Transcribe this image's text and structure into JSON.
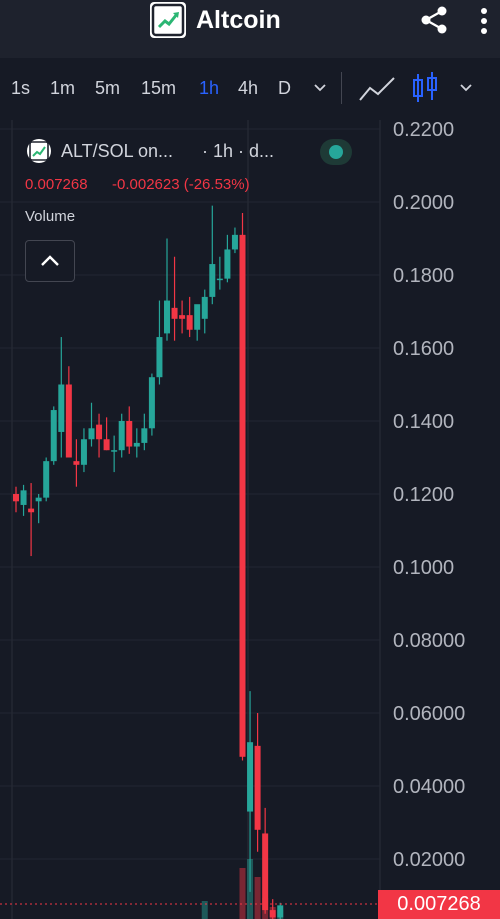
{
  "app": {
    "title": "Altcoin"
  },
  "icons": {
    "logo": "chart-up-logo-icon",
    "share": "share-icon",
    "more": "more-vertical-icon",
    "dropdown": "chevron-down-icon",
    "line_chart": "line-chart-icon",
    "candles": "candlestick-icon",
    "collapse": "chevron-up-icon"
  },
  "toolbar": {
    "timeframes": [
      "1s",
      "1m",
      "5m",
      "15m",
      "1h",
      "4h",
      "D"
    ],
    "active_timeframe": "1h"
  },
  "legend": {
    "symbol": "ALT/SOL on...",
    "interval": "· 1h · d...",
    "price": "0.007268",
    "change": "-0.002623 (-26.53%)",
    "volume_label": "Volume"
  },
  "current_price_badge": "0.007268",
  "colors": {
    "up": "#26a69a",
    "down": "#f23645",
    "accent": "#2962ff",
    "background": "#161a25"
  },
  "chart_data": {
    "type": "candlestick",
    "ylim": [
      0,
      0.22
    ],
    "ticks": [
      "0.2200",
      "0.2000",
      "0.1800",
      "0.1600",
      "0.1400",
      "0.1200",
      "0.1000",
      "0.08000",
      "0.06000",
      "0.04000",
      "0.02000"
    ],
    "tick_values": [
      0.22,
      0.2,
      0.18,
      0.16,
      0.14,
      0.12,
      0.1,
      0.08,
      0.06,
      0.04,
      0.02
    ],
    "candles": [
      {
        "o": 0.12,
        "h": 0.122,
        "l": 0.115,
        "c": 0.118
      },
      {
        "o": 0.117,
        "h": 0.1225,
        "l": 0.114,
        "c": 0.121
      },
      {
        "o": 0.116,
        "h": 0.123,
        "l": 0.103,
        "c": 0.115
      },
      {
        "o": 0.118,
        "h": 0.12,
        "l": 0.112,
        "c": 0.119
      },
      {
        "o": 0.119,
        "h": 0.13,
        "l": 0.118,
        "c": 0.129
      },
      {
        "o": 0.129,
        "h": 0.144,
        "l": 0.128,
        "c": 0.143
      },
      {
        "o": 0.137,
        "h": 0.163,
        "l": 0.13,
        "c": 0.15
      },
      {
        "o": 0.15,
        "h": 0.155,
        "l": 0.13,
        "c": 0.13
      },
      {
        "o": 0.129,
        "h": 0.135,
        "l": 0.122,
        "c": 0.128
      },
      {
        "o": 0.128,
        "h": 0.138,
        "l": 0.126,
        "c": 0.135
      },
      {
        "o": 0.135,
        "h": 0.145,
        "l": 0.133,
        "c": 0.138
      },
      {
        "o": 0.139,
        "h": 0.142,
        "l": 0.13,
        "c": 0.135
      },
      {
        "o": 0.135,
        "h": 0.141,
        "l": 0.132,
        "c": 0.132
      },
      {
        "o": 0.132,
        "h": 0.136,
        "l": 0.126,
        "c": 0.132
      },
      {
        "o": 0.132,
        "h": 0.142,
        "l": 0.13,
        "c": 0.14
      },
      {
        "o": 0.14,
        "h": 0.144,
        "l": 0.131,
        "c": 0.133
      },
      {
        "o": 0.133,
        "h": 0.138,
        "l": 0.13,
        "c": 0.134
      },
      {
        "o": 0.134,
        "h": 0.142,
        "l": 0.132,
        "c": 0.138
      },
      {
        "o": 0.138,
        "h": 0.153,
        "l": 0.136,
        "c": 0.152
      },
      {
        "o": 0.152,
        "h": 0.173,
        "l": 0.15,
        "c": 0.163
      },
      {
        "o": 0.164,
        "h": 0.19,
        "l": 0.162,
        "c": 0.173
      },
      {
        "o": 0.171,
        "h": 0.185,
        "l": 0.162,
        "c": 0.168
      },
      {
        "o": 0.169,
        "h": 0.173,
        "l": 0.164,
        "c": 0.168
      },
      {
        "o": 0.169,
        "h": 0.174,
        "l": 0.163,
        "c": 0.165
      },
      {
        "o": 0.165,
        "h": 0.171,
        "l": 0.162,
        "c": 0.172
      },
      {
        "o": 0.168,
        "h": 0.176,
        "l": 0.164,
        "c": 0.174
      },
      {
        "o": 0.174,
        "h": 0.199,
        "l": 0.172,
        "c": 0.183
      },
      {
        "o": 0.179,
        "h": 0.185,
        "l": 0.176,
        "c": 0.179
      },
      {
        "o": 0.179,
        "h": 0.191,
        "l": 0.178,
        "c": 0.187
      },
      {
        "o": 0.187,
        "h": 0.193,
        "l": 0.186,
        "c": 0.191
      },
      {
        "o": 0.191,
        "h": 0.197,
        "l": 0.047,
        "c": 0.048
      },
      {
        "o": 0.033,
        "h": 0.066,
        "l": 0.011,
        "c": 0.052
      },
      {
        "o": 0.051,
        "h": 0.06,
        "l": 0.022,
        "c": 0.028
      },
      {
        "o": 0.027,
        "h": 0.034,
        "l": 0.005,
        "c": 0.006
      },
      {
        "o": 0.006,
        "h": 0.009,
        "l": 0.002,
        "c": 0.004
      },
      {
        "o": 0.004,
        "h": 0.008,
        "l": 0.002,
        "c": 0.0073
      }
    ],
    "volume": [
      0,
      0,
      0,
      0,
      0,
      0,
      0,
      0,
      0,
      0,
      0,
      0,
      0,
      0,
      0,
      0,
      0,
      0,
      0,
      0,
      0,
      0,
      0,
      0,
      0,
      0.3,
      0,
      0,
      0,
      0,
      0.85,
      1.0,
      0.7,
      0.35,
      0.2,
      0.15
    ]
  }
}
